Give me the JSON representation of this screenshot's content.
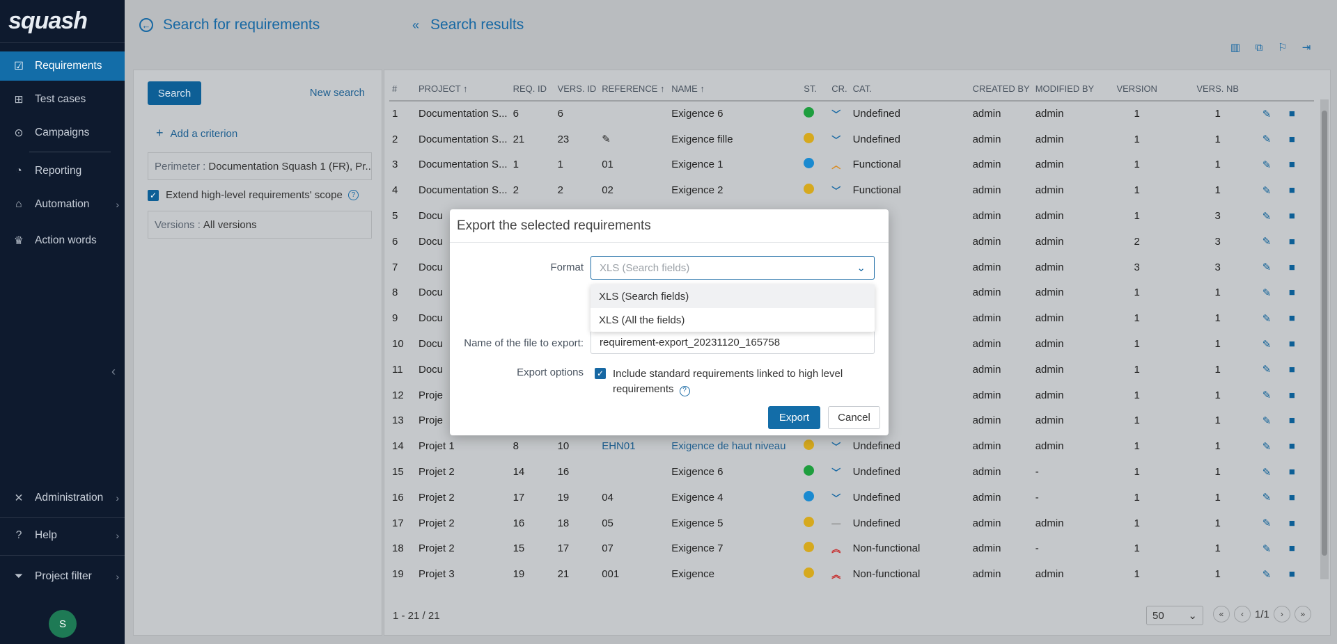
{
  "app": {
    "logo": "squash"
  },
  "sidebar": {
    "items": [
      {
        "label": "Requirements",
        "icon": "checkbox-icon"
      },
      {
        "label": "Test cases",
        "icon": "tree-icon"
      },
      {
        "label": "Campaigns",
        "icon": "play-circle-icon"
      },
      {
        "label": "Reporting",
        "icon": "pie-chart-icon"
      },
      {
        "label": "Automation",
        "icon": "robot-icon"
      },
      {
        "label": "Action words",
        "icon": "crown-icon"
      },
      {
        "label": "Administration",
        "icon": "wrench-icon"
      },
      {
        "label": "Help",
        "icon": "help-circle-icon"
      },
      {
        "label": "Project filter",
        "icon": "filter-icon"
      }
    ],
    "avatar_initial": "S"
  },
  "header": {
    "left_title": "Search for requirements",
    "right_title": "Search results"
  },
  "search_panel": {
    "search_label": "Search",
    "new_search_label": "New search",
    "add_criterion_label": "Add a criterion",
    "perimeter_label": "Perimeter :",
    "perimeter_value": "Documentation Squash 1 (FR), Pr...",
    "extend_label": "Extend high-level requirements' scope",
    "versions_label": "Versions :",
    "versions_value": "All versions"
  },
  "table": {
    "columns": [
      "#",
      "PROJECT",
      "REQ. ID",
      "VERS. ID",
      "REFERENCE",
      "NAME",
      "ST.",
      "CR.",
      "CAT.",
      "CREATED BY",
      "MODIFIED BY",
      "VERSION",
      "VERS. NB"
    ],
    "rows": [
      {
        "n": "1",
        "project": "Documentation S...",
        "req": "6",
        "vers": "6",
        "ref": "",
        "name": "Exigence 6",
        "status": "#1e9e3e",
        "crit": "low",
        "cat": "Undefined",
        "created": "admin",
        "modified": "admin",
        "version": "1",
        "versnb": "1"
      },
      {
        "n": "2",
        "project": "Documentation S...",
        "req": "21",
        "vers": "23",
        "ref": "✎",
        "name": "Exigence fille",
        "status": "#d6a91e",
        "crit": "low",
        "cat": "Undefined",
        "created": "admin",
        "modified": "admin",
        "version": "1",
        "versnb": "1"
      },
      {
        "n": "3",
        "project": "Documentation S...",
        "req": "1",
        "vers": "1",
        "ref": "01",
        "name": "Exigence 1",
        "status": "#1a8ad0",
        "crit": "medium",
        "cat": "Functional",
        "created": "admin",
        "modified": "admin",
        "version": "1",
        "versnb": "1"
      },
      {
        "n": "4",
        "project": "Documentation S...",
        "req": "2",
        "vers": "2",
        "ref": "02",
        "name": "Exigence 2",
        "status": "#d6a91e",
        "crit": "low",
        "cat": "Functional",
        "created": "admin",
        "modified": "admin",
        "version": "1",
        "versnb": "1"
      },
      {
        "n": "5",
        "project": "Docu",
        "req": "",
        "vers": "",
        "ref": "",
        "name": "",
        "status": "",
        "crit": "",
        "cat": "e",
        "created": "admin",
        "modified": "admin",
        "version": "1",
        "versnb": "3"
      },
      {
        "n": "6",
        "project": "Docu",
        "req": "",
        "vers": "",
        "ref": "",
        "name": "",
        "status": "",
        "crit": "",
        "cat": "e",
        "created": "admin",
        "modified": "admin",
        "version": "2",
        "versnb": "3"
      },
      {
        "n": "7",
        "project": "Docu",
        "req": "",
        "vers": "",
        "ref": "",
        "name": "",
        "status": "",
        "crit": "",
        "cat": "e",
        "created": "admin",
        "modified": "admin",
        "version": "3",
        "versnb": "3"
      },
      {
        "n": "8",
        "project": "Docu",
        "req": "",
        "vers": "",
        "ref": "",
        "name": "",
        "status": "",
        "crit": "",
        "cat": "ed",
        "created": "admin",
        "modified": "admin",
        "version": "1",
        "versnb": "1"
      },
      {
        "n": "9",
        "project": "Docu",
        "req": "",
        "vers": "",
        "ref": "",
        "name": "",
        "status": "",
        "crit": "",
        "cat": "ed",
        "created": "admin",
        "modified": "admin",
        "version": "1",
        "versnb": "1"
      },
      {
        "n": "10",
        "project": "Docu",
        "req": "",
        "vers": "",
        "ref": "",
        "name": "",
        "status": "",
        "crit": "",
        "cat": "ctional",
        "created": "admin",
        "modified": "admin",
        "version": "1",
        "versnb": "1"
      },
      {
        "n": "11",
        "project": "Docu",
        "req": "",
        "vers": "",
        "ref": "",
        "name": "",
        "status": "",
        "crit": "",
        "cat": "ed",
        "created": "admin",
        "modified": "admin",
        "version": "1",
        "versnb": "1"
      },
      {
        "n": "12",
        "project": "Proje",
        "req": "",
        "vers": "",
        "ref": "",
        "name": "",
        "status": "",
        "crit": "",
        "cat": "ed",
        "created": "admin",
        "modified": "admin",
        "version": "1",
        "versnb": "1"
      },
      {
        "n": "13",
        "project": "Proje",
        "req": "",
        "vers": "",
        "ref": "",
        "name": "",
        "status": "",
        "crit": "",
        "cat": "ed",
        "created": "admin",
        "modified": "admin",
        "version": "1",
        "versnb": "1"
      },
      {
        "n": "14",
        "project": "Projet 1",
        "req": "8",
        "vers": "10",
        "ref": "EHN01",
        "name": "Exigence de haut niveau",
        "status": "#d6a91e",
        "crit": "low",
        "cat": "Undefined",
        "created": "admin",
        "modified": "admin",
        "version": "1",
        "versnb": "1"
      },
      {
        "n": "15",
        "project": "Projet 2",
        "req": "14",
        "vers": "16",
        "ref": "",
        "name": "Exigence 6",
        "status": "#1e9e3e",
        "crit": "low",
        "cat": "Undefined",
        "created": "admin",
        "modified": "-",
        "version": "1",
        "versnb": "1"
      },
      {
        "n": "16",
        "project": "Projet 2",
        "req": "17",
        "vers": "19",
        "ref": "04",
        "name": "Exigence 4",
        "status": "#1a8ad0",
        "crit": "low",
        "cat": "Undefined",
        "created": "admin",
        "modified": "-",
        "version": "1",
        "versnb": "1"
      },
      {
        "n": "17",
        "project": "Projet 2",
        "req": "16",
        "vers": "18",
        "ref": "05",
        "name": "Exigence 5",
        "status": "#d6a91e",
        "crit": "minor",
        "cat": "Undefined",
        "created": "admin",
        "modified": "admin",
        "version": "1",
        "versnb": "1"
      },
      {
        "n": "18",
        "project": "Projet 2",
        "req": "15",
        "vers": "17",
        "ref": "07",
        "name": "Exigence 7",
        "status": "#d6a91e",
        "crit": "high",
        "cat": "Non-functional",
        "created": "admin",
        "modified": "-",
        "version": "1",
        "versnb": "1"
      },
      {
        "n": "19",
        "project": "Projet 3",
        "req": "19",
        "vers": "21",
        "ref": "001",
        "name": "Exigence",
        "status": "#d6a91e",
        "crit": "high",
        "cat": "Non-functional",
        "created": "admin",
        "modified": "admin",
        "version": "1",
        "versnb": "1"
      }
    ],
    "count": "1 - 21 / 21",
    "page_size": "50",
    "page": "1/1"
  },
  "modal": {
    "title": "Export the selected requirements",
    "format_label": "Format",
    "format_placeholder": "XLS (Search fields)",
    "options": [
      "XLS (Search fields)",
      "XLS (All the fields)"
    ],
    "filename_label": "Name of the file to export:",
    "filename_value": "requirement-export_20231120_165758",
    "export_options_label": "Export options",
    "include_label": "Include standard requirements linked to high level requirements",
    "export_label": "Export",
    "cancel_label": "Cancel"
  },
  "colors": {
    "accent": "#136da8",
    "sidebar": "#0e1a2e",
    "overlay": "#b9bcbf"
  }
}
